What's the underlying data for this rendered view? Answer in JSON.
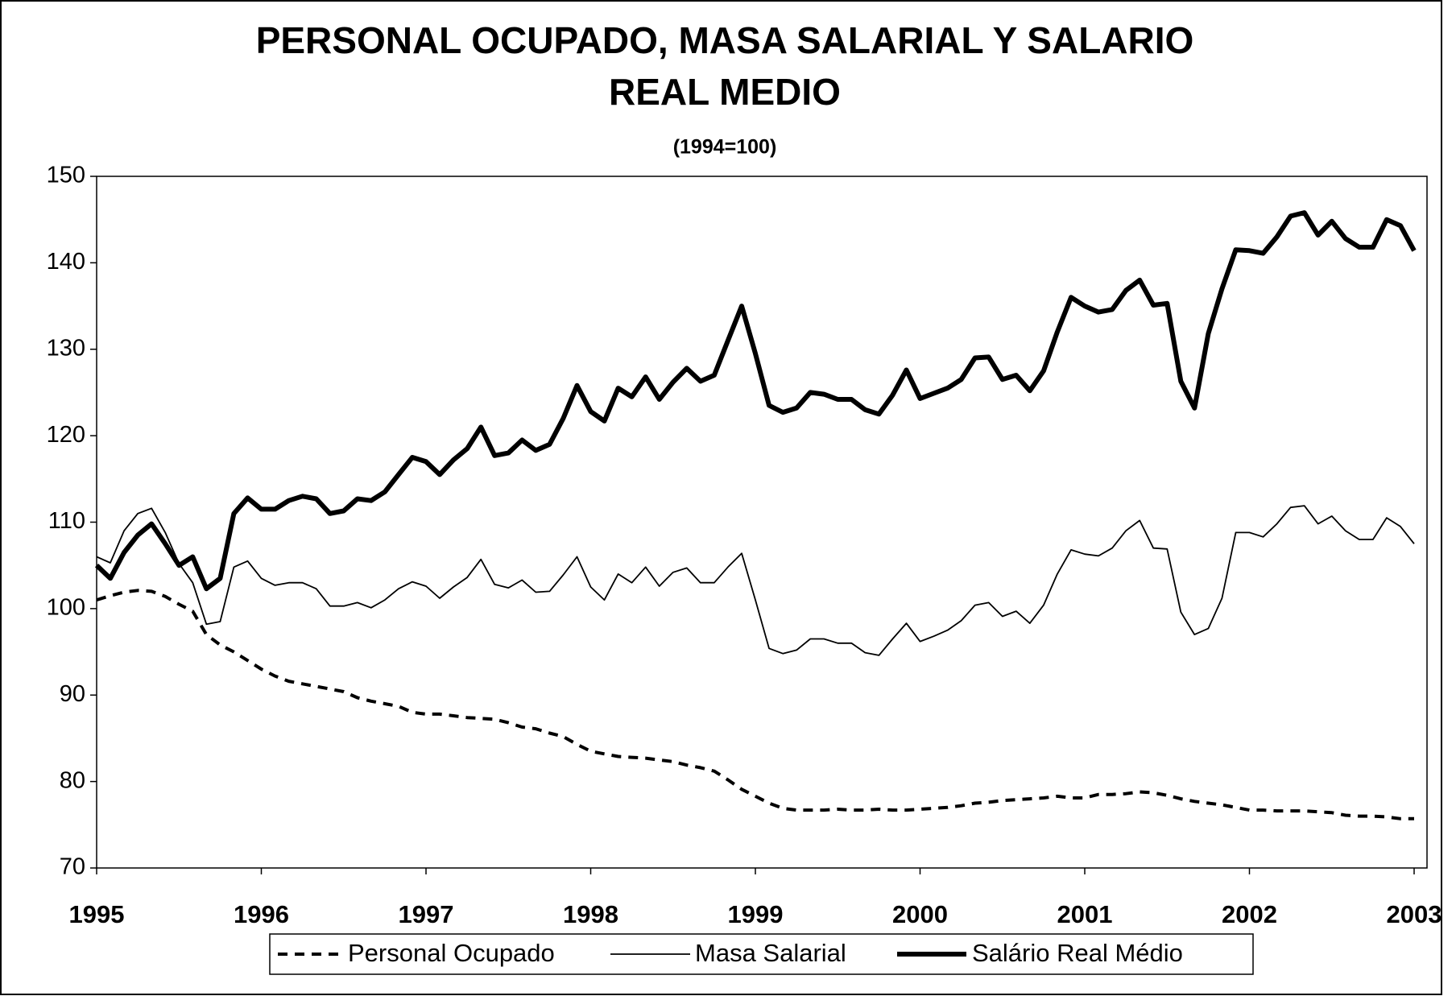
{
  "chart_data": {
    "type": "line",
    "title": [
      "PERSONAL OCUPADO, MASA SALARIAL Y SALARIO",
      "REAL MEDIO"
    ],
    "subtitle": "(1994=100)",
    "categories": [
      1995,
      null,
      null,
      null,
      null,
      null,
      null,
      null,
      null,
      null,
      null,
      null,
      1996,
      null,
      null,
      null,
      null,
      null,
      null,
      null,
      null,
      null,
      null,
      null,
      1997,
      null,
      null,
      null,
      null,
      null,
      null,
      null,
      null,
      null,
      null,
      null,
      1998,
      null,
      null,
      null,
      null,
      null,
      null,
      null,
      null,
      null,
      null,
      null,
      1999,
      null,
      null,
      null,
      null,
      null,
      null,
      null,
      null,
      null,
      null,
      null,
      2000,
      null,
      null,
      null,
      null,
      null,
      null,
      null,
      null,
      null,
      null,
      null,
      2001,
      null,
      null,
      null,
      null,
      null,
      null,
      null,
      null,
      null,
      null,
      null,
      2002,
      null,
      null,
      null,
      null,
      null,
      null,
      null,
      null,
      null,
      null,
      null,
      2003
    ],
    "series": [
      {
        "name": "Personal Ocupado",
        "color": "#000000",
        "style": "dashed",
        "values": [
          101.0,
          101.5,
          101.9,
          102.1,
          102.0,
          101.4,
          100.5,
          99.7,
          97.0,
          95.8,
          95.0,
          94.0,
          93.0,
          92.2,
          91.6,
          91.3,
          91.0,
          90.7,
          90.4,
          89.7,
          89.3,
          89.0,
          88.7,
          88.0,
          87.8,
          87.8,
          87.6,
          87.4,
          87.3,
          87.2,
          86.8,
          86.3,
          86.1,
          85.6,
          85.2,
          84.3,
          83.5,
          83.2,
          82.9,
          82.8,
          82.7,
          82.5,
          82.3,
          81.9,
          81.6,
          81.2,
          80.2,
          79.1,
          78.3,
          77.5,
          76.9,
          76.7,
          76.7,
          76.7,
          76.8,
          76.7,
          76.7,
          76.8,
          76.7,
          76.7,
          76.8,
          76.9,
          77.0,
          77.2,
          77.5,
          77.6,
          77.8,
          77.9,
          78.0,
          78.1,
          78.3,
          78.1,
          78.1,
          78.5,
          78.5,
          78.6,
          78.8,
          78.7,
          78.4,
          78.0,
          77.7,
          77.5,
          77.3,
          77.0,
          76.7,
          76.7,
          76.6,
          76.6,
          76.6,
          76.5,
          76.4,
          76.1,
          76.0,
          76.0,
          75.9,
          75.7,
          75.7
        ]
      },
      {
        "name": "Masa Salarial",
        "color": "#000000",
        "style": "thin",
        "values": [
          106,
          105.3,
          109,
          111,
          111.6,
          108.8,
          105.2,
          103,
          98.2,
          98.5,
          104.8,
          105.5,
          103.5,
          102.7,
          103,
          103,
          102.3,
          100.3,
          100.3,
          100.7,
          100.1,
          101,
          102.3,
          103.1,
          102.6,
          101.2,
          102.5,
          103.6,
          105.7,
          102.8,
          102.4,
          103.3,
          101.9,
          102,
          103.9,
          106,
          102.5,
          101,
          104,
          103,
          104.8,
          102.6,
          104.2,
          104.7,
          103,
          103,
          104.8,
          106.4,
          101,
          95.4,
          94.8,
          95.2,
          96.5,
          96.5,
          96,
          96,
          94.9,
          94.6,
          96.5,
          98.3,
          96.2,
          96.8,
          97.5,
          98.6,
          100.4,
          100.7,
          99.1,
          99.7,
          98.3,
          100.4,
          104,
          106.8,
          106.3,
          106.1,
          107,
          109,
          110.2,
          107,
          106.9,
          99.6,
          97,
          97.7,
          101.2,
          108.8,
          108.8,
          108.3,
          109.8,
          111.7,
          111.9,
          109.8,
          110.7,
          109,
          108,
          108,
          110.5,
          109.5,
          107.5
        ]
      },
      {
        "name": "Salário Real Médio",
        "color": "#000000",
        "style": "thick",
        "values": [
          105,
          103.5,
          106.5,
          108.5,
          109.8,
          107.5,
          105,
          106,
          102.3,
          103.5,
          111,
          112.8,
          111.5,
          111.5,
          112.5,
          113,
          112.7,
          111,
          111.3,
          112.7,
          112.5,
          113.5,
          115.5,
          117.5,
          117,
          115.5,
          117.2,
          118.5,
          121,
          117.7,
          118,
          119.5,
          118.3,
          119,
          122,
          125.8,
          122.8,
          121.7,
          125.5,
          124.5,
          126.8,
          124.2,
          126.2,
          127.8,
          126.3,
          127,
          131,
          135,
          129.5,
          123.5,
          122.7,
          123.2,
          125,
          124.8,
          124.2,
          124.2,
          123,
          122.5,
          124.7,
          127.6,
          124.3,
          124.9,
          125.5,
          126.5,
          129,
          129.1,
          126.5,
          127,
          125.2,
          127.5,
          132,
          136,
          135,
          134.3,
          134.6,
          136.8,
          138,
          135.1,
          135.3,
          126.3,
          123.2,
          131.8,
          137,
          141.5,
          141.4,
          141.1,
          143,
          145.4,
          145.8,
          143.2,
          144.8,
          142.8,
          141.8,
          141.8,
          145,
          144.3,
          141.4
        ]
      }
    ],
    "ylim": [
      70,
      150
    ],
    "yticks": [
      70,
      80,
      90,
      100,
      110,
      120,
      130,
      140,
      150
    ],
    "grid": false,
    "legend": "bottom"
  }
}
